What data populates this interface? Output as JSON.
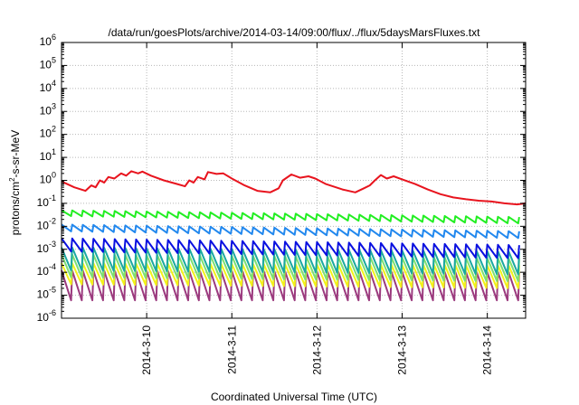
{
  "chart_data": {
    "type": "line",
    "title": "/data/run/goesPlots/archive/2014-03-14/09:00/flux/../flux/5daysMarsFluxes.txt",
    "xlabel": "Coordinated Universal Time (UTC)",
    "ylabel": "protons/cm²-s-sr-MeV",
    "yscale": "log",
    "ylim": [
      1e-06,
      1000000.0
    ],
    "xlim_days": [
      9.0,
      14.45
    ],
    "x_unit": "days of 2014-03",
    "x_ticks": [
      {
        "value": 10,
        "label": "2014-3-10"
      },
      {
        "value": 11,
        "label": "2014-3-11"
      },
      {
        "value": 12,
        "label": "2014-3-12"
      },
      {
        "value": 13,
        "label": "2014-3-13"
      },
      {
        "value": 14,
        "label": "2014-3-14"
      }
    ],
    "y_ticks": [
      {
        "exp": -6,
        "base": "10",
        "sup": "-6"
      },
      {
        "exp": -5,
        "base": "10",
        "sup": "-5"
      },
      {
        "exp": -4,
        "base": "10",
        "sup": "-4"
      },
      {
        "exp": -3,
        "base": "10",
        "sup": "-3"
      },
      {
        "exp": -2,
        "base": "10",
        "sup": "-2"
      },
      {
        "exp": -1,
        "base": "10",
        "sup": "-1"
      },
      {
        "exp": 0,
        "base": "10",
        "sup": "0"
      },
      {
        "exp": 1,
        "base": "10",
        "sup": "1"
      },
      {
        "exp": 2,
        "base": "10",
        "sup": "2"
      },
      {
        "exp": 3,
        "base": "10",
        "sup": "3"
      },
      {
        "exp": 4,
        "base": "10",
        "sup": "4"
      },
      {
        "exp": 5,
        "base": "10",
        "sup": "5"
      },
      {
        "exp": 6,
        "base": "10",
        "sup": "6"
      }
    ],
    "grid": true,
    "legend": "none",
    "series": [
      {
        "color": "#e8141e",
        "points": [
          [
            9.0,
            0.9
          ],
          [
            9.15,
            0.5
          ],
          [
            9.28,
            0.35
          ],
          [
            9.35,
            0.6
          ],
          [
            9.4,
            0.5
          ],
          [
            9.45,
            1.0
          ],
          [
            9.5,
            0.8
          ],
          [
            9.55,
            1.4
          ],
          [
            9.62,
            1.2
          ],
          [
            9.7,
            2.0
          ],
          [
            9.76,
            1.6
          ],
          [
            9.82,
            2.5
          ],
          [
            9.9,
            2.0
          ],
          [
            9.95,
            2.4
          ],
          [
            10.05,
            1.6
          ],
          [
            10.2,
            1.0
          ],
          [
            10.35,
            0.7
          ],
          [
            10.45,
            0.55
          ],
          [
            10.5,
            1.0
          ],
          [
            10.55,
            0.8
          ],
          [
            10.6,
            1.4
          ],
          [
            10.68,
            1.1
          ],
          [
            10.72,
            2.3
          ],
          [
            10.82,
            1.9
          ],
          [
            10.9,
            2.0
          ],
          [
            11.0,
            1.2
          ],
          [
            11.15,
            0.6
          ],
          [
            11.3,
            0.35
          ],
          [
            11.45,
            0.3
          ],
          [
            11.55,
            0.45
          ],
          [
            11.6,
            1.0
          ],
          [
            11.7,
            1.8
          ],
          [
            11.8,
            1.3
          ],
          [
            11.9,
            1.5
          ],
          [
            11.98,
            1.2
          ],
          [
            12.1,
            0.7
          ],
          [
            12.3,
            0.4
          ],
          [
            12.45,
            0.3
          ],
          [
            12.55,
            0.45
          ],
          [
            12.62,
            0.6
          ],
          [
            12.68,
            1.0
          ],
          [
            12.75,
            1.7
          ],
          [
            12.82,
            1.2
          ],
          [
            12.9,
            1.5
          ],
          [
            13.0,
            1.1
          ],
          [
            13.15,
            0.7
          ],
          [
            13.3,
            0.4
          ],
          [
            13.45,
            0.25
          ],
          [
            13.6,
            0.18
          ],
          [
            13.75,
            0.15
          ],
          [
            13.9,
            0.13
          ],
          [
            14.05,
            0.12
          ],
          [
            14.2,
            0.1
          ],
          [
            14.35,
            0.09
          ],
          [
            14.45,
            0.1
          ]
        ]
      },
      {
        "color": "#22ee22",
        "sawtooth": {
          "high": 0.05,
          "low": 0.028,
          "high_end": 0.025,
          "low_end": 0.013
        }
      },
      {
        "color": "#2288ee",
        "sawtooth": {
          "high": 0.012,
          "low": 0.006,
          "high_end": 0.006,
          "low_end": 0.003
        }
      },
      {
        "color": "#0a10e0",
        "sawtooth": {
          "high": 0.003,
          "low": 0.0008,
          "high_end": 0.0015,
          "low_end": 0.0004
        }
      },
      {
        "color": "#1aa8a0",
        "sawtooth": {
          "high": 0.0012,
          "low": 0.00012,
          "high_end": 0.0008,
          "low_end": 8e-05
        }
      },
      {
        "color": "#7ee070",
        "sawtooth": {
          "high": 0.0006,
          "low": 6e-05,
          "high_end": 0.0004,
          "low_end": 4e-05
        }
      },
      {
        "color": "#f2f21a",
        "sawtooth": {
          "high": 0.00025,
          "low": 3e-05,
          "high_end": 0.0002,
          "low_end": 2e-05
        }
      },
      {
        "color": "#9b3a7e",
        "sawtooth": {
          "high": 0.00012,
          "low": 6e-06,
          "high_end": 0.0001,
          "low_end": 6e-06
        }
      }
    ],
    "sawtooth_period_days": 0.125
  }
}
